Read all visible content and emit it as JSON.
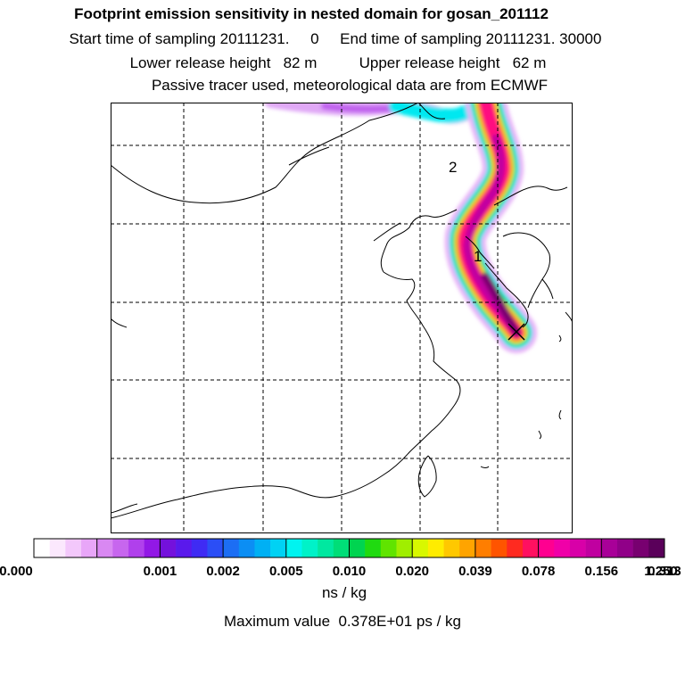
{
  "title": "Footprint emission sensitivity in nested domain for gosan_201112",
  "sampling_line": "Start time of sampling 20111231.     0     End time of sampling 20111231. 30000",
  "release_line": "Lower release height   82 m          Upper release height   62 m",
  "tracer_line": "Passive tracer used, meteorological data are from ECMWF",
  "map": {
    "labels": [
      {
        "text": "2",
        "id": "day-label-2"
      },
      {
        "text": "1",
        "id": "day-label-1"
      }
    ],
    "release_marker": "release-point-x-icon"
  },
  "legend": {
    "colors": [
      "#ffffff",
      "#fbe8fd",
      "#f3c8fb",
      "#e8a6f8",
      "#d988f2",
      "#c766ee",
      "#b040ec",
      "#9218e6",
      "#7411dc",
      "#5a19ec",
      "#3f2bf4",
      "#2b4ef6",
      "#1c6ef4",
      "#0c8ef4",
      "#00b0f4",
      "#00d2f4",
      "#00f4f0",
      "#00f2c8",
      "#00e8a0",
      "#00de78",
      "#00d450",
      "#20da10",
      "#60e400",
      "#a0ee00",
      "#d8f800",
      "#ffec00",
      "#ffc800",
      "#ffa400",
      "#ff7e00",
      "#ff5400",
      "#ff2a20",
      "#ff1060",
      "#ff0090",
      "#f000a8",
      "#d800a8",
      "#c000a0",
      "#a80098",
      "#900088",
      "#780070",
      "#5a005a"
    ],
    "group_size": 4,
    "tick_labels": [
      "0.000",
      "0.001",
      "0.002",
      "0.005",
      "0.010",
      "0.020",
      "0.039",
      "0.078",
      "0.156",
      "0.313",
      "0.625",
      "1.250"
    ],
    "unit": "ns / kg"
  },
  "max_value_text": "Maximum value  0.378E+01 ps / kg"
}
